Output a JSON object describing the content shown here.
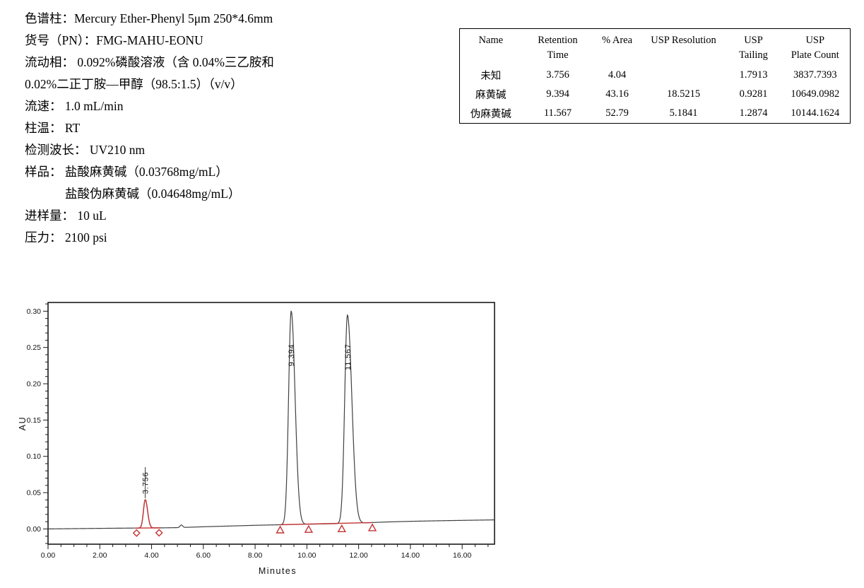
{
  "page": {
    "background": "#ffffff"
  },
  "method": {
    "lines": [
      {
        "text": "色谱柱：Mercury Ether-Phenyl  5μm 250*4.6mm",
        "indent": false
      },
      {
        "text": "货号（PN）：FMG-MAHU-EONU",
        "indent": false
      },
      {
        "text": "流动相： 0.092%磷酸溶液（含 0.04%三乙胺和",
        "indent": false
      },
      {
        "text": "0.02%二正丁胺—甲醇（98.5:1.5）（v/v）",
        "indent": false
      },
      {
        "text": "流速： 1.0 mL/min",
        "indent": false
      },
      {
        "text": "柱温： RT",
        "indent": false
      },
      {
        "text": "检测波长： UV210 nm",
        "indent": false
      },
      {
        "text": "样品： 盐酸麻黄碱（0.03768mg/mL）",
        "indent": false
      },
      {
        "text": "盐酸伪麻黄碱（0.04648mg/mL）",
        "indent": true
      },
      {
        "text": "进样量： 10 uL",
        "indent": false
      },
      {
        "text": "压力：  2100 psi",
        "indent": false
      }
    ]
  },
  "table": {
    "columns": [
      {
        "lines": [
          "Name"
        ]
      },
      {
        "lines": [
          "Retention",
          "Time"
        ]
      },
      {
        "lines": [
          "% Area"
        ]
      },
      {
        "lines": [
          "USP Resolution"
        ]
      },
      {
        "lines": [
          "USP",
          "Tailing"
        ]
      },
      {
        "lines": [
          "USP",
          "Plate Count"
        ]
      }
    ],
    "rows": [
      {
        "cells": [
          "未知",
          "3.756",
          "4.04",
          "",
          "1.7913",
          "3837.7393"
        ]
      },
      {
        "cells": [
          "麻黄碱",
          "9.394",
          "43.16",
          "18.5215",
          "0.9281",
          "10649.0982"
        ]
      },
      {
        "cells": [
          "伪麻黄碱",
          "11.567",
          "52.79",
          "5.1841",
          "1.2874",
          "10144.1624"
        ]
      }
    ]
  },
  "chart_data": {
    "type": "line",
    "title": "",
    "xlabel": "Minutes",
    "ylabel": "AU",
    "xlim": [
      0,
      17.25
    ],
    "ylim": [
      -0.021,
      0.312
    ],
    "x_major_ticks": [
      0,
      2,
      4,
      6,
      8,
      10,
      12,
      14,
      16
    ],
    "x_tick_labels": [
      "0.00",
      "2.00",
      "4.00",
      "6.00",
      "8.00",
      "10.00",
      "12.00",
      "14.00",
      "16.00"
    ],
    "x_minor_step": 0.5,
    "y_major_ticks": [
      0,
      0.05,
      0.1,
      0.15,
      0.2,
      0.25,
      0.3
    ],
    "y_tick_labels": [
      "0.00",
      "0.05",
      "0.10",
      "0.15",
      "0.20",
      "0.25",
      "0.30"
    ],
    "y_minor_step": 0.01,
    "grid": false,
    "trace_color": "#404040",
    "accent_color": "#c23334",
    "frame_color": "#1a1a1a",
    "baseline_drift": [
      [
        0,
        0.0
      ],
      [
        2,
        0.0008
      ],
      [
        3.3,
        0.0012
      ],
      [
        4.4,
        0.0015
      ],
      [
        5,
        0.0018
      ],
      [
        6,
        0.003
      ],
      [
        7,
        0.004
      ],
      [
        8,
        0.005
      ],
      [
        9,
        0.0058
      ],
      [
        10,
        0.0065
      ],
      [
        11,
        0.0072
      ],
      [
        12,
        0.008
      ],
      [
        13,
        0.0095
      ],
      [
        14,
        0.0105
      ],
      [
        15,
        0.0112
      ],
      [
        16,
        0.0118
      ],
      [
        17.25,
        0.0125
      ]
    ],
    "peaks": [
      {
        "name": "未知",
        "rt": 3.756,
        "label": "3.756",
        "height": 0.039,
        "sigma_l": 0.07,
        "sigma_r": 0.09,
        "integrated_color": "red"
      },
      {
        "name": "麻黄碱",
        "rt": 9.394,
        "label": "9.394",
        "height": 0.294,
        "sigma_l": 0.1,
        "sigma_r": 0.15,
        "integrated_color": "black"
      },
      {
        "name": "伪麻黄碱",
        "rt": 11.567,
        "label": "11.567",
        "height": 0.287,
        "sigma_l": 0.105,
        "sigma_r": 0.17,
        "integrated_color": "black"
      }
    ],
    "artifact": {
      "rt": 5.15,
      "height": 0.0035,
      "sigma": 0.05
    },
    "integration": {
      "red_trace_range_min": [
        3.38,
        4.34
      ],
      "red_baseline_segments": [
        [
          3.38,
          4.34
        ],
        [
          8.97,
          12.53
        ]
      ],
      "diamond_markers_min": [
        3.42,
        4.29
      ],
      "triangle_markers_min": [
        8.97,
        10.07,
        11.35,
        12.53
      ]
    }
  }
}
